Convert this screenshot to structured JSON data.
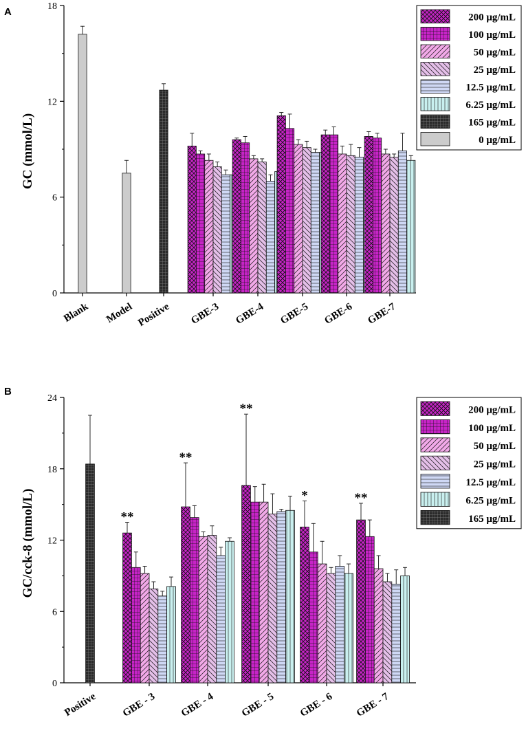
{
  "figure": {
    "panels": [
      "A",
      "B"
    ]
  },
  "colors": {
    "magenta": "#c724c7",
    "pink": "#f2a9e8",
    "lavender": "#e4bfe8",
    "blue": "#cfd8f5",
    "cyan": "#c9f0ef",
    "black": "#2a2a2a",
    "gray": "#cccccc"
  },
  "chart_data": [
    {
      "type": "bar",
      "panel": "A",
      "ylabel": "GC (mmol/L)",
      "ylim": [
        0,
        18
      ],
      "yticks": [
        0,
        6,
        12,
        18
      ],
      "categories": [
        "Blank",
        "Model",
        "Positive",
        "GBE-3",
        "GBE-4",
        "GBE-5",
        "GBE-6",
        "GBE-7"
      ],
      "legend": [
        "200 μg/mL",
        "100 μg/mL",
        "50 μg/mL",
        "25 μg/mL",
        "12.5 μg/mL",
        "6.25 μg/mL",
        "165 μg/mL",
        "0 μg/mL"
      ],
      "legend_position": "top-right",
      "groups": [
        {
          "category": "Blank",
          "bars": [
            {
              "series": "0 μg/mL",
              "value": 16.2,
              "error": 0.5
            }
          ]
        },
        {
          "category": "Model",
          "bars": [
            {
              "series": "0 μg/mL",
              "value": 7.5,
              "error": 0.8
            }
          ]
        },
        {
          "category": "Positive",
          "bars": [
            {
              "series": "165 μg/mL",
              "value": 12.7,
              "error": 0.4
            }
          ]
        },
        {
          "category": "GBE-3",
          "bars": [
            {
              "series": "200 μg/mL",
              "value": 9.2,
              "error": 0.8
            },
            {
              "series": "100 μg/mL",
              "value": 8.7,
              "error": 0.2
            },
            {
              "series": "50 μg/mL",
              "value": 8.3,
              "error": 0.4
            },
            {
              "series": "25 μg/mL",
              "value": 7.9,
              "error": 0.3
            },
            {
              "series": "12.5 μg/mL",
              "value": 7.4,
              "error": 0.3
            },
            {
              "series": "6.25 μg/mL",
              "value": 7.4,
              "error": 0.3
            }
          ]
        },
        {
          "category": "GBE-4",
          "bars": [
            {
              "series": "200 μg/mL",
              "value": 9.6,
              "error": 0.1
            },
            {
              "series": "100 μg/mL",
              "value": 9.4,
              "error": 0.4
            },
            {
              "series": "50 μg/mL",
              "value": 8.4,
              "error": 0.2
            },
            {
              "series": "25 μg/mL",
              "value": 8.2,
              "error": 0.2
            },
            {
              "series": "12.5 μg/mL",
              "value": 7.0,
              "error": 0.4
            },
            {
              "series": "6.25 μg/mL",
              "value": 7.6,
              "error": 0.6
            }
          ]
        },
        {
          "category": "GBE-5",
          "bars": [
            {
              "series": "200 μg/mL",
              "value": 11.1,
              "error": 0.2
            },
            {
              "series": "100 μg/mL",
              "value": 10.3,
              "error": 0.9
            },
            {
              "series": "50 μg/mL",
              "value": 9.3,
              "error": 0.3
            },
            {
              "series": "25 μg/mL",
              "value": 9.1,
              "error": 0.4
            },
            {
              "series": "12.5 μg/mL",
              "value": 8.8,
              "error": 0.2
            },
            {
              "series": "6.25 μg/mL",
              "value": 8.8,
              "error": 0.7
            }
          ]
        },
        {
          "category": "GBE-6",
          "bars": [
            {
              "series": "200 μg/mL",
              "value": 9.9,
              "error": 0.3
            },
            {
              "series": "100 μg/mL",
              "value": 9.9,
              "error": 0.5
            },
            {
              "series": "50 μg/mL",
              "value": 8.7,
              "error": 0.5
            },
            {
              "series": "25 μg/mL",
              "value": 8.6,
              "error": 0.7
            },
            {
              "series": "12.5 μg/mL",
              "value": 8.5,
              "error": 0.6
            },
            {
              "series": "6.25 μg/mL",
              "value": 8.1,
              "error": 0.4
            }
          ]
        },
        {
          "category": "GBE-7",
          "bars": [
            {
              "series": "200 μg/mL",
              "value": 9.8,
              "error": 0.3
            },
            {
              "series": "100 μg/mL",
              "value": 9.7,
              "error": 0.3
            },
            {
              "series": "50 μg/mL",
              "value": 8.7,
              "error": 0.3
            },
            {
              "series": "25 μg/mL",
              "value": 8.5,
              "error": 0.2
            },
            {
              "series": "12.5 μg/mL",
              "value": 8.9,
              "error": 1.1
            },
            {
              "series": "6.25 μg/mL",
              "value": 8.3,
              "error": 0.3
            }
          ]
        }
      ]
    },
    {
      "type": "bar",
      "panel": "B",
      "ylabel": "GC/cck-8 (mmol/L)",
      "ylim": [
        0,
        24
      ],
      "yticks": [
        0,
        6,
        12,
        18,
        24
      ],
      "categories": [
        "Positive",
        "GBE - 3",
        "GBE - 4",
        "GBE - 5",
        "GBE - 6",
        "GBE - 7"
      ],
      "legend": [
        "200 μg/mL",
        "100 μg/mL",
        "50 μg/mL",
        "25 μg/mL",
        "12.5 μg/mL",
        "6.25 μg/mL",
        "165 μg/mL"
      ],
      "legend_position": "top-right",
      "groups": [
        {
          "category": "Positive",
          "bars": [
            {
              "series": "165 μg/mL",
              "value": 18.4,
              "error": 4.1
            }
          ]
        },
        {
          "category": "GBE - 3",
          "bars": [
            {
              "series": "200 μg/mL",
              "value": 12.6,
              "error": 0.9,
              "annotation": "**"
            },
            {
              "series": "100 μg/mL",
              "value": 9.7,
              "error": 1.3
            },
            {
              "series": "50 μg/mL",
              "value": 9.2,
              "error": 0.6
            },
            {
              "series": "25 μg/mL",
              "value": 7.9,
              "error": 0.6
            },
            {
              "series": "12.5 μg/mL",
              "value": 7.3,
              "error": 0.4
            },
            {
              "series": "6.25 μg/mL",
              "value": 8.1,
              "error": 0.8
            }
          ]
        },
        {
          "category": "GBE - 4",
          "bars": [
            {
              "series": "200 μg/mL",
              "value": 14.8,
              "error": 3.7,
              "annotation": "**"
            },
            {
              "series": "100 μg/mL",
              "value": 13.9,
              "error": 1.0
            },
            {
              "series": "50 μg/mL",
              "value": 12.3,
              "error": 0.4
            },
            {
              "series": "25 μg/mL",
              "value": 12.4,
              "error": 0.8
            },
            {
              "series": "12.5 μg/mL",
              "value": 10.7,
              "error": 0.7
            },
            {
              "series": "6.25 μg/mL",
              "value": 11.9,
              "error": 0.3
            }
          ]
        },
        {
          "category": "GBE - 5",
          "bars": [
            {
              "series": "200 μg/mL",
              "value": 16.6,
              "error": 6.0,
              "annotation": "**"
            },
            {
              "series": "100 μg/mL",
              "value": 15.2,
              "error": 1.3
            },
            {
              "series": "50 μg/mL",
              "value": 15.2,
              "error": 1.5
            },
            {
              "series": "25 μg/mL",
              "value": 14.2,
              "error": 1.7
            },
            {
              "series": "12.5 μg/mL",
              "value": 14.4,
              "error": 0.2
            },
            {
              "series": "6.25 μg/mL",
              "value": 14.5,
              "error": 1.2
            }
          ]
        },
        {
          "category": "GBE - 6",
          "bars": [
            {
              "series": "200 μg/mL",
              "value": 13.1,
              "error": 2.2,
              "annotation": "*"
            },
            {
              "series": "100 μg/mL",
              "value": 11.0,
              "error": 2.4
            },
            {
              "series": "50 μg/mL",
              "value": 10.0,
              "error": 1.9
            },
            {
              "series": "25 μg/mL",
              "value": 9.2,
              "error": 0.5
            },
            {
              "series": "12.5 μg/mL",
              "value": 9.8,
              "error": 0.9
            },
            {
              "series": "6.25 μg/mL",
              "value": 9.2,
              "error": 0.8
            }
          ]
        },
        {
          "category": "GBE - 7",
          "bars": [
            {
              "series": "200 μg/mL",
              "value": 13.7,
              "error": 1.4,
              "annotation": "**"
            },
            {
              "series": "100 μg/mL",
              "value": 12.3,
              "error": 1.4
            },
            {
              "series": "50 μg/mL",
              "value": 9.6,
              "error": 1.1
            },
            {
              "series": "25 μg/mL",
              "value": 8.5,
              "error": 0.7
            },
            {
              "series": "12.5 μg/mL",
              "value": 8.3,
              "error": 1.2
            },
            {
              "series": "6.25 μg/mL",
              "value": 9.0,
              "error": 0.7
            }
          ]
        }
      ]
    }
  ]
}
